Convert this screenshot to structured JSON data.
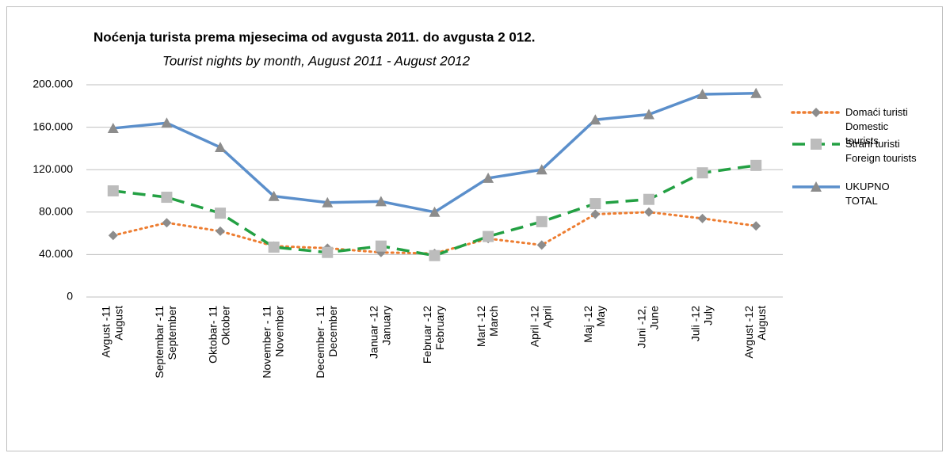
{
  "chart_data": {
    "type": "line",
    "title": "Noćenja turista prema mjesecima od avgusta  2011.  do  avgusta 2 012.",
    "subtitle": "Tourist nights by month,  August 2011 -  August 2012",
    "categories": [
      [
        "Avgust -11",
        "August"
      ],
      [
        "Septembar -11",
        "September"
      ],
      [
        "Oktobar- 11",
        "Oktober"
      ],
      [
        "November - 11",
        "November"
      ],
      [
        "December - 11",
        "December"
      ],
      [
        "Januar -12",
        "January"
      ],
      [
        "Februar -12",
        "February"
      ],
      [
        "Mart -12",
        "March"
      ],
      [
        "April  -12",
        "April"
      ],
      [
        "Maj -12",
        "May"
      ],
      [
        "Juni -12,",
        "June"
      ],
      [
        "Juli -12",
        "July"
      ],
      [
        "Avgust -12",
        "August"
      ]
    ],
    "series": [
      {
        "name": "Domaći turisti\nDomestic\ntourists",
        "color": "#ed7d31",
        "marker_color": "#8c8c8c",
        "marker": "diamond",
        "dash": "dotted",
        "values": [
          58000,
          70000,
          62000,
          48000,
          46000,
          42000,
          41000,
          55000,
          49000,
          78000,
          80000,
          74000,
          67000
        ]
      },
      {
        "name": "Strani turisti\nForeign tourists",
        "color": "#23a043",
        "marker_color": "#bcbcbc",
        "marker": "square",
        "dash": "dashed",
        "values": [
          100000,
          94000,
          79000,
          47000,
          42000,
          48000,
          39000,
          57000,
          71000,
          88000,
          92000,
          117000,
          124000
        ]
      },
      {
        "name": "UKUPNO\nTOTAL",
        "color": "#5b8fcb",
        "marker_color": "#8c8c8c",
        "marker": "triangle",
        "dash": "solid",
        "values": [
          159000,
          164000,
          141000,
          95000,
          89000,
          90000,
          80000,
          112000,
          120000,
          167000,
          172000,
          191000,
          192000
        ]
      }
    ],
    "ylim": [
      0,
      200000
    ],
    "yticks": [
      0,
      {
        "value": 40000,
        "label": "40.000"
      },
      {
        "value": 80000,
        "label": "80.000"
      },
      {
        "value": 120000,
        "label": "120.000"
      },
      {
        "value": 160000,
        "label": "160.000"
      },
      {
        "value": 200000,
        "label": "200.000"
      }
    ],
    "grid": true,
    "legend": "right"
  }
}
